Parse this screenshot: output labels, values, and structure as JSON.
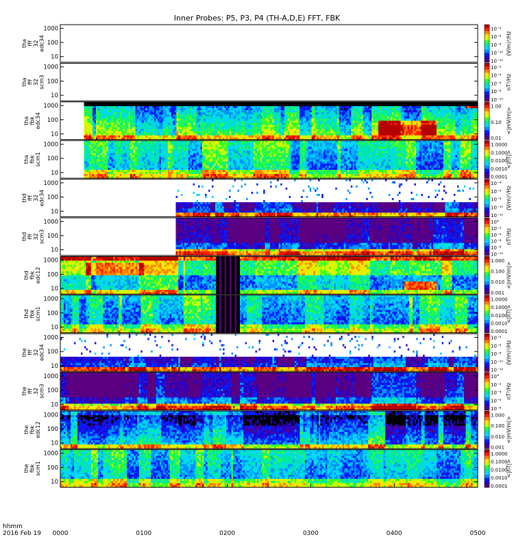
{
  "chart_data": {
    "type": "heatmap",
    "title": "Inner Probes: P5, P3, P4 (TH-A,D,E) FFT, FBK",
    "x_ticks": [
      "0000",
      "0100",
      "0200",
      "0300",
      "0400",
      "0500"
    ],
    "xlim": [
      "0000",
      "0500"
    ],
    "footer": {
      "time_label": "hhmm",
      "date_label": "2016 Feb 19"
    },
    "y_ticks": [
      "10",
      "100",
      "1000"
    ],
    "panels": [
      {
        "name": "tha-fff-32-edc34",
        "ylabel": [
          "tha",
          "fff",
          "32",
          "edc34"
        ],
        "unit": "(V/m)²/Hz",
        "cticks": [
          "10⁻⁴",
          "10⁻⁶",
          "10⁻⁸",
          "10⁻¹⁰",
          "10⁻¹²"
        ],
        "data_from": null,
        "pattern": "empty"
      },
      {
        "name": "tha-fff-32-scm3",
        "ylabel": [
          "tha",
          "fff",
          "32",
          "scm3"
        ],
        "unit": "nT²/Hz",
        "cticks": [
          "10⁻²",
          "10⁻⁴",
          "10⁻⁶",
          "10⁻⁸",
          "10⁻¹⁰"
        ],
        "data_from": null,
        "pattern": "empty"
      },
      {
        "name": "tha-fbk-edc34",
        "ylabel": [
          "tha",
          "fbk",
          "edc34"
        ],
        "unit": "<|mV/m|>",
        "cticks": [
          "1.00",
          "0.10",
          "0.01"
        ],
        "data_from": "0017",
        "pattern": "fbk_edc_a"
      },
      {
        "name": "tha-fbk-scm1",
        "ylabel": [
          "tha",
          "fbk",
          "scm1"
        ],
        "unit": "<|nT|>",
        "cticks": [
          "1.0000",
          "0.1000",
          "0.0100",
          "0.0010",
          "0.0001"
        ],
        "data_from": "0017",
        "pattern": "fbk_scm"
      },
      {
        "name": "thd-fff-32-edc34",
        "ylabel": [
          "thd",
          "fff",
          "32",
          "edc34"
        ],
        "unit": "(V/m)²/Hz",
        "cticks": [
          "10⁻⁴",
          "10⁻⁶",
          "10⁻⁸",
          "10⁻¹⁰",
          "10⁻¹²"
        ],
        "data_from": "0123",
        "pattern": "fff_edc"
      },
      {
        "name": "thd-fff-32-scm3",
        "ylabel": [
          "thd",
          "fff",
          "32",
          "scm3"
        ],
        "unit": "nT²/Hz",
        "cticks": [
          "10°",
          "10⁻²",
          "10⁻⁴",
          "10⁻⁶",
          "10⁻⁸",
          "10⁻¹⁰"
        ],
        "data_from": "0123",
        "pattern": "fff_scm"
      },
      {
        "name": "thd-fbk-edc12",
        "ylabel": [
          "thd",
          "fbk",
          "edc12"
        ],
        "unit": "<|mV/m|>",
        "cticks": [
          "1.000",
          "0.100",
          "0.010",
          "0.001"
        ],
        "data_from": "0000",
        "pattern": "fbk_edc_d"
      },
      {
        "name": "thd-fbk-scm1",
        "ylabel": [
          "thd",
          "fbk",
          "scm1"
        ],
        "unit": "<|nT|>",
        "cticks": [
          "1.0000",
          "0.1000",
          "0.0100",
          "0.0010",
          "0.0001"
        ],
        "data_from": "0000",
        "pattern": "fbk_scm_d"
      },
      {
        "name": "the-fff-32-edc34",
        "ylabel": [
          "the",
          "fff",
          "32",
          "edc34"
        ],
        "unit": "(V/m)²/Hz",
        "cticks": [
          "10⁻⁴",
          "10⁻⁶",
          "10⁻⁸",
          "10⁻¹⁰",
          "10⁻¹²"
        ],
        "data_from": "0000",
        "pattern": "fff_edc"
      },
      {
        "name": "the-fff-32-scm3",
        "ylabel": [
          "the",
          "fff",
          "32",
          "scm3"
        ],
        "unit": "nT²/Hz",
        "cticks": [
          "10°",
          "10⁻²",
          "10⁻⁴",
          "10⁻⁶",
          "10⁻⁸"
        ],
        "data_from": "0000",
        "pattern": "fff_scm"
      },
      {
        "name": "the-fbk-edc12",
        "ylabel": [
          "the",
          "fbk",
          "edc12"
        ],
        "unit": "<|mV/m|>",
        "cticks": [
          "1.000",
          "0.100",
          "0.010",
          "0.001"
        ],
        "data_from": "0000",
        "pattern": "fbk_edc_e"
      },
      {
        "name": "the-fbk-scm1",
        "ylabel": [
          "the",
          "fbk",
          "scm1"
        ],
        "unit": "<|nT|>",
        "cticks": [
          "1.0000",
          "0.1000",
          "0.0100",
          "0.0010",
          "0.0001"
        ],
        "data_from": "0000",
        "pattern": "fbk_scm"
      }
    ],
    "colors": [
      "#5a0080",
      "#2a00c8",
      "#0020ff",
      "#0090ff",
      "#00d8ff",
      "#00e8a0",
      "#30ff30",
      "#c8ff00",
      "#ffe000",
      "#ff8000",
      "#ff2000",
      "#b40000"
    ]
  }
}
